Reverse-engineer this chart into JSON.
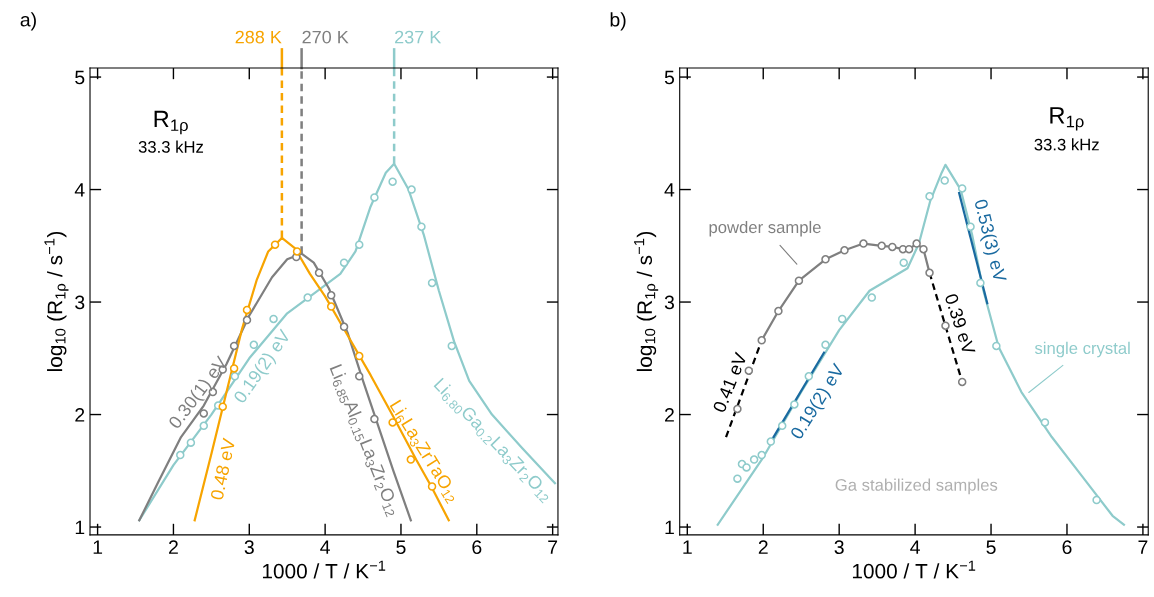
{
  "chart_data": [
    {
      "type": "scatter",
      "title": "a)",
      "xlabel": "1000 / T / K$^{−1}$",
      "ylabel": "log$_{10}$ (R$_{1ρ}$ / s$^{−1}$)",
      "xlim": [
        0.9,
        7.07
      ],
      "ylim": [
        0.93,
        5.08
      ],
      "xticks": [
        1,
        2,
        3,
        4,
        5,
        6,
        7
      ],
      "yticks": [
        1,
        2,
        3,
        4,
        5
      ],
      "grid": false,
      "series": [
        {
          "type": "line",
          "color": "#8ecbcb",
          "marker": "none",
          "x": [
            1.55,
            2.0,
            2.5,
            3.0,
            3.5,
            3.9,
            4.2,
            4.4,
            4.6,
            4.8,
            4.91,
            5.1,
            5.3,
            5.5,
            5.7,
            5.9,
            6.2,
            6.6,
            7.03
          ],
          "values": [
            1.06,
            1.55,
            2.0,
            2.5,
            2.9,
            3.1,
            3.25,
            3.45,
            3.85,
            4.15,
            4.23,
            4.0,
            3.6,
            3.1,
            2.65,
            2.3,
            2.0,
            1.7,
            1.39
          ]
        },
        {
          "type": "line",
          "color": "#7f7f7f",
          "marker": "none",
          "x": [
            1.55,
            1.8,
            2.1,
            2.4,
            2.7,
            3.0,
            3.3,
            3.5,
            3.69,
            3.85,
            4.05,
            4.3,
            4.5,
            4.7,
            4.9,
            5.13
          ],
          "values": [
            1.06,
            1.4,
            1.8,
            2.08,
            2.45,
            2.88,
            3.22,
            3.38,
            3.43,
            3.35,
            3.12,
            2.72,
            2.3,
            1.9,
            1.5,
            1.06
          ]
        },
        {
          "type": "line",
          "color": "#f7a400",
          "marker": "none",
          "x": [
            2.28,
            2.5,
            2.7,
            2.9,
            3.1,
            3.25,
            3.43,
            3.6,
            3.8,
            4.0,
            4.3,
            4.6,
            4.9,
            5.2,
            5.4,
            5.63
          ],
          "values": [
            1.06,
            1.65,
            2.2,
            2.75,
            3.2,
            3.45,
            3.57,
            3.48,
            3.25,
            3.05,
            2.7,
            2.35,
            1.98,
            1.6,
            1.36,
            1.06
          ]
        },
        {
          "color": "#8ecbcb",
          "marker": "circle",
          "x": [
            2.09,
            2.23,
            2.4,
            2.59,
            2.81,
            3.06,
            3.32,
            3.77,
            4.25,
            4.45,
            4.65,
            4.89,
            5.14,
            5.27,
            5.41,
            5.67
          ],
          "values": [
            1.64,
            1.75,
            1.9,
            2.08,
            2.34,
            2.62,
            2.85,
            3.04,
            3.35,
            3.51,
            3.93,
            4.07,
            4.0,
            3.67,
            3.17,
            2.61
          ]
        },
        {
          "color": "#7f7f7f",
          "marker": "circle",
          "x": [
            2.4,
            2.52,
            2.65,
            2.8,
            2.97,
            3.62,
            3.92,
            4.08,
            4.25,
            4.45,
            4.65
          ],
          "values": [
            2.01,
            2.2,
            2.4,
            2.61,
            2.84,
            3.4,
            3.26,
            3.06,
            2.78,
            2.34,
            1.96
          ]
        },
        {
          "color": "#f7a400",
          "marker": "circle",
          "x": [
            2.65,
            2.8,
            2.97,
            3.34,
            3.63,
            4.08,
            4.45,
            4.89,
            5.13,
            5.41
          ],
          "values": [
            2.07,
            2.41,
            2.93,
            3.51,
            3.45,
            2.96,
            2.52,
            1.93,
            1.6,
            1.36
          ]
        }
      ],
      "ref_lines": [
        {
          "axis": "x",
          "value": 3.43,
          "label": "288 K",
          "color": "#f7a400",
          "line_style": "dashed"
        },
        {
          "axis": "x",
          "value": 3.69,
          "label": "270 K",
          "color": "#7f7f7f",
          "line_style": "dashed"
        },
        {
          "axis": "x",
          "value": 4.91,
          "label": "237 K",
          "color": "#8ecbcb",
          "line_style": "dashed"
        }
      ],
      "annotations": [
        "R$_{1ρ}$",
        "33.3 kHz",
        "0.30(1) eV",
        "0.19(2) eV",
        "0.48 eV",
        "Li$_{6.85}$Al$_{0.15}$La$_{3}$Zr$_{2}$O$_{12}$",
        "Li$_{6}$La$_{3}$ZrTaO$_{12}$",
        "Li$_{6.80}$Ga$_{0.2}$La$_{3}$Zr$_{2}$O$_{12}$"
      ]
    },
    {
      "type": "scatter",
      "title": "b)",
      "xlabel": "1000 / T / K$^{−1}$",
      "ylabel": "log$_{10}$ (R$_{1ρ}$ / s$^{−1}$)",
      "xlim": [
        0.9,
        7.07
      ],
      "ylim": [
        0.93,
        5.08
      ],
      "xticks": [
        1,
        2,
        3,
        4,
        5,
        6,
        7
      ],
      "yticks": [
        1,
        2,
        3,
        4,
        5
      ],
      "grid": false,
      "series": [
        {
          "type": "line",
          "color": "#8ecbcb",
          "marker": "none",
          "x": [
            1.4,
            2.0,
            2.5,
            3.0,
            3.4,
            3.7,
            3.9,
            4.05,
            4.2,
            4.35,
            4.4,
            4.6,
            4.75,
            4.9,
            5.1,
            5.4,
            5.8,
            6.2,
            6.6,
            6.75
          ],
          "values": [
            1.02,
            1.62,
            2.2,
            2.75,
            3.1,
            3.22,
            3.3,
            3.52,
            3.9,
            4.15,
            4.22,
            4.0,
            3.6,
            3.1,
            2.6,
            2.2,
            1.8,
            1.45,
            1.1,
            1.02
          ]
        },
        {
          "type": "line",
          "color": "#7f7f7f",
          "marker": "none",
          "x": [
            1.98,
            2.2,
            2.47,
            2.82,
            3.07,
            3.32,
            3.56,
            3.7,
            3.84,
            3.92,
            4.02,
            4.11,
            4.19
          ],
          "values": [
            2.66,
            2.92,
            3.19,
            3.38,
            3.46,
            3.52,
            3.5,
            3.49,
            3.47,
            3.47,
            3.52,
            3.47,
            3.26
          ]
        },
        {
          "type": "line",
          "color": "#000000",
          "marker": "none",
          "line_style": "dashed",
          "x": [
            1.51,
            1.98
          ],
          "values": [
            1.8,
            2.66
          ]
        },
        {
          "type": "line",
          "color": "#000000",
          "marker": "none",
          "line_style": "dashed",
          "x": [
            4.19,
            4.62
          ],
          "values": [
            3.26,
            2.29
          ]
        },
        {
          "type": "line",
          "color": "#1a6aa0",
          "marker": "none",
          "x": [
            2.11,
            2.8
          ],
          "values": [
            1.77,
            2.55
          ]
        },
        {
          "type": "line",
          "color": "#1a6aa0",
          "marker": "none",
          "x": [
            4.58,
            4.95
          ],
          "values": [
            3.97,
            2.99
          ]
        },
        {
          "color": "#8ecbcb",
          "marker": "circle",
          "x": [
            1.66,
            1.72,
            1.78,
            1.88,
            1.98,
            2.1,
            2.25,
            2.41,
            2.6,
            2.82,
            3.04,
            3.43,
            3.85,
            4.19,
            4.39,
            4.62,
            4.73,
            4.86,
            5.07,
            5.71,
            6.39
          ],
          "values": [
            1.43,
            1.56,
            1.53,
            1.6,
            1.64,
            1.76,
            1.9,
            2.09,
            2.34,
            2.62,
            2.85,
            3.04,
            3.35,
            3.94,
            4.08,
            4.01,
            3.67,
            3.17,
            2.61,
            1.93,
            1.24
          ]
        },
        {
          "color": "#7f7f7f",
          "marker": "circle",
          "x": [
            1.66,
            1.81,
            1.98,
            2.2,
            2.47,
            2.82,
            3.07,
            3.32,
            3.56,
            3.7,
            3.84,
            3.92,
            4.02,
            4.11,
            4.19,
            4.4,
            4.62
          ],
          "values": [
            2.05,
            2.39,
            2.66,
            2.92,
            3.19,
            3.38,
            3.46,
            3.52,
            3.5,
            3.49,
            3.47,
            3.47,
            3.52,
            3.47,
            3.26,
            2.79,
            2.29
          ]
        }
      ],
      "annotations": [
        "R$_{1ρ}$",
        "33.3 kHz",
        "powder sample",
        "0.41 eV",
        "0.19(2) eV",
        "0.39 eV",
        "0.53(3) eV",
        "single crystal",
        "Ga stabilized samples"
      ]
    }
  ]
}
